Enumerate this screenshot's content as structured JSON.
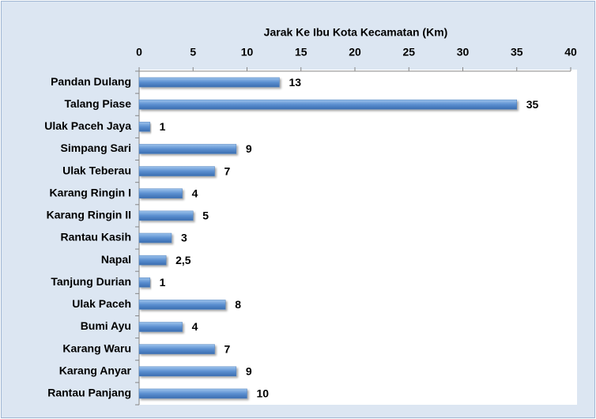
{
  "chart_data": {
    "type": "barh",
    "title": "Jarak Ke Ibu Kota Kecamatan (Km)",
    "categories": [
      "Pandan Dulang",
      "Talang Piase",
      "Ulak Paceh Jaya",
      "Simpang Sari",
      "Ulak Teberau",
      "Karang Ringin I",
      "Karang Ringin II",
      "Rantau Kasih",
      "Napal",
      "Tanjung Durian",
      "Ulak Paceh",
      "Bumi Ayu",
      "Karang Waru",
      "Karang Anyar",
      "Rantau Panjang"
    ],
    "values": [
      13,
      35,
      1,
      9,
      7,
      4,
      5,
      3,
      2.5,
      1,
      8,
      4,
      7,
      9,
      10
    ],
    "value_labels": [
      "13",
      "35",
      "1",
      "9",
      "7",
      "4",
      "5",
      "3",
      "2,5",
      "1",
      "8",
      "4",
      "7",
      "9",
      "10"
    ],
    "color": "#4f81bd",
    "xlim": [
      0,
      40
    ],
    "xticks": [
      0,
      5,
      10,
      15,
      20,
      25,
      30,
      35,
      40
    ]
  }
}
